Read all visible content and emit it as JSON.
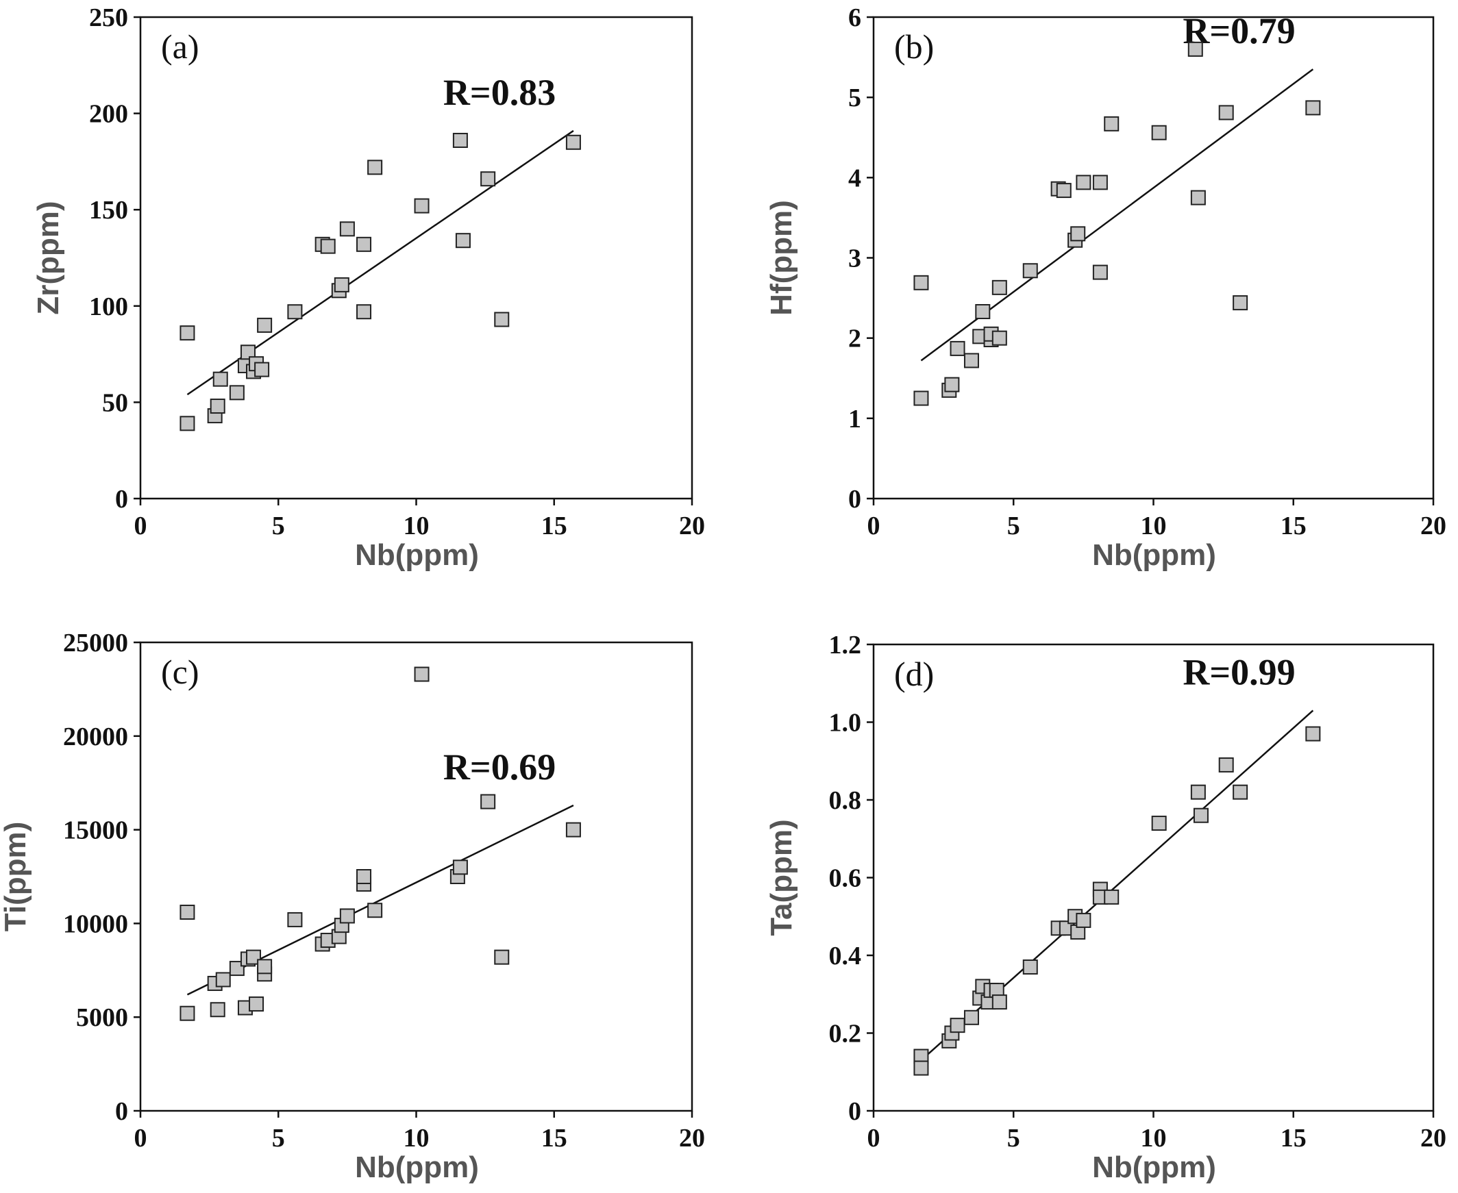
{
  "chart_data": [
    {
      "type": "scatter",
      "panel_label": "(a)",
      "xlabel": "Nb(ppm)",
      "ylabel": "Zr(ppm)",
      "xlim": [
        0,
        20
      ],
      "ylim": [
        0,
        250
      ],
      "xticks": [
        0,
        5,
        10,
        15,
        20
      ],
      "yticks": [
        0,
        50,
        100,
        150,
        200,
        250
      ],
      "annotation": "R=0.83",
      "fit_line": [
        [
          1.7,
          54
        ],
        [
          15.7,
          191
        ]
      ],
      "series": [
        {
          "x": [
            1.7,
            1.7,
            2.7,
            2.8,
            2.9,
            3.5,
            3.8,
            3.9,
            4.1,
            4.2,
            4.4,
            4.5,
            5.6,
            6.6,
            6.8,
            7.2,
            7.3,
            7.5,
            8.1,
            8.1,
            8.5,
            10.2,
            11.6,
            11.7,
            12.6,
            13.1,
            15.7
          ],
          "y": [
            86,
            39,
            43,
            48,
            62,
            55,
            69,
            76,
            66,
            70,
            67,
            90,
            97,
            132,
            131,
            108,
            111,
            140,
            132,
            97,
            172,
            152,
            186,
            134,
            166,
            93,
            185
          ]
        }
      ]
    },
    {
      "type": "scatter",
      "panel_label": "(b)",
      "xlabel": "Nb(ppm)",
      "ylabel": "Hf(ppm)",
      "xlim": [
        0,
        20
      ],
      "ylim": [
        0,
        6
      ],
      "xticks": [
        0,
        5,
        10,
        15,
        20
      ],
      "yticks": [
        0,
        1,
        2,
        3,
        4,
        5,
        6
      ],
      "annotation": "R=0.79",
      "fit_line": [
        [
          1.7,
          1.72
        ],
        [
          15.7,
          5.35
        ]
      ],
      "series": [
        {
          "x": [
            1.7,
            1.7,
            2.7,
            2.8,
            3.0,
            3.5,
            3.8,
            3.9,
            4.2,
            4.2,
            4.5,
            4.5,
            5.6,
            6.6,
            6.8,
            7.2,
            7.3,
            7.5,
            8.1,
            8.1,
            8.5,
            10.2,
            11.5,
            11.6,
            12.6,
            13.1,
            15.7
          ],
          "y": [
            2.69,
            1.25,
            1.35,
            1.42,
            1.87,
            1.72,
            2.02,
            2.33,
            1.98,
            2.05,
            2.0,
            2.63,
            2.84,
            3.86,
            3.84,
            3.22,
            3.3,
            3.94,
            3.94,
            2.82,
            4.67,
            4.56,
            5.6,
            3.75,
            4.81,
            2.44,
            4.87
          ]
        }
      ]
    },
    {
      "type": "scatter",
      "panel_label": "(c)",
      "xlabel": "Nb(ppm)",
      "ylabel": "Ti(ppm)",
      "xlim": [
        0,
        20
      ],
      "ylim": [
        0,
        25000
      ],
      "xticks": [
        0,
        5,
        10,
        15,
        20
      ],
      "yticks": [
        0,
        5000,
        10000,
        15000,
        20000,
        25000
      ],
      "annotation": "R=0.69",
      "fit_line": [
        [
          1.7,
          6200
        ],
        [
          15.7,
          16300
        ]
      ],
      "series": [
        {
          "x": [
            1.7,
            1.7,
            2.7,
            2.8,
            3.0,
            3.5,
            3.8,
            3.9,
            4.1,
            4.2,
            4.5,
            4.5,
            5.6,
            6.6,
            6.8,
            7.2,
            7.3,
            7.5,
            8.1,
            8.1,
            8.5,
            10.2,
            11.5,
            11.6,
            12.6,
            13.1,
            15.7
          ],
          "y": [
            10600,
            5200,
            6800,
            5400,
            7000,
            7600,
            5500,
            8100,
            8200,
            5700,
            7300,
            7700,
            10200,
            8900,
            9100,
            9300,
            9900,
            10400,
            12100,
            12500,
            10700,
            23300,
            12500,
            13000,
            16500,
            8200,
            15000
          ]
        }
      ]
    },
    {
      "type": "scatter",
      "panel_label": "(d)",
      "xlabel": "Nb(ppm)",
      "ylabel": "Ta(ppm)",
      "xlim": [
        0,
        20
      ],
      "ylim": [
        0,
        1.2
      ],
      "xticks": [
        0,
        5,
        10,
        15,
        20
      ],
      "yticks": [
        "0",
        "0.2",
        "0.4",
        "0.6",
        "0.8",
        "1.0",
        "1.2"
      ],
      "annotation": "R=0.99",
      "fit_line": [
        [
          1.7,
          0.13
        ],
        [
          15.7,
          1.03
        ]
      ],
      "series": [
        {
          "x": [
            1.7,
            1.7,
            2.7,
            2.8,
            3.0,
            3.5,
            3.8,
            3.9,
            4.1,
            4.2,
            4.4,
            4.5,
            5.6,
            6.6,
            6.9,
            7.2,
            7.3,
            7.5,
            8.1,
            8.1,
            8.5,
            10.2,
            11.6,
            11.7,
            12.6,
            13.1,
            15.7
          ],
          "y": [
            0.14,
            0.11,
            0.18,
            0.2,
            0.22,
            0.24,
            0.29,
            0.32,
            0.28,
            0.31,
            0.31,
            0.28,
            0.37,
            0.47,
            0.47,
            0.5,
            0.46,
            0.49,
            0.57,
            0.55,
            0.55,
            0.74,
            0.82,
            0.76,
            0.89,
            0.82,
            0.97
          ]
        }
      ]
    }
  ]
}
